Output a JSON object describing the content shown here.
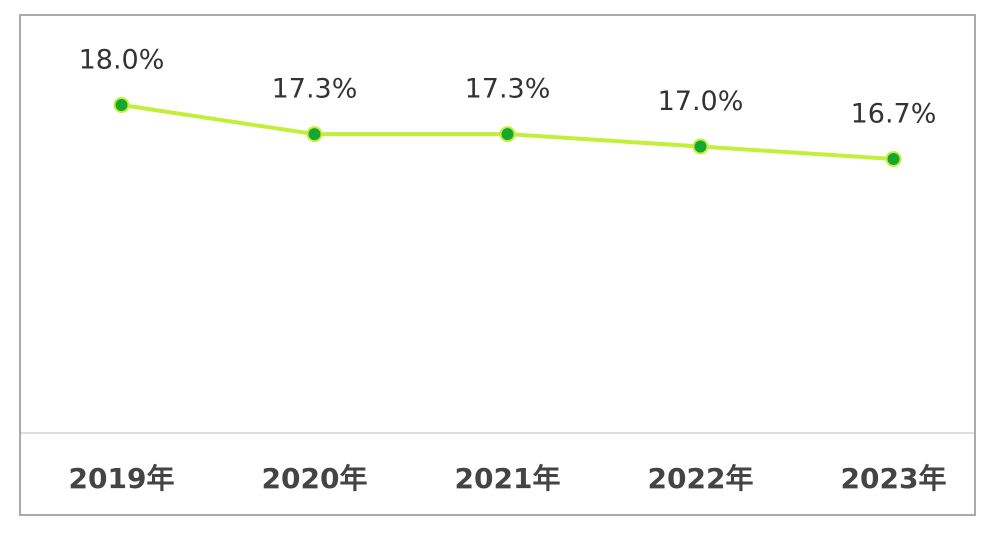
{
  "chart_data": {
    "type": "line",
    "categories": [
      "2019年",
      "2020年",
      "2021年",
      "2022年",
      "2023年"
    ],
    "series": [
      {
        "color": "#c3ef3a",
        "marker_color": "#17a62f",
        "values": [
          18.0,
          17.3,
          17.3,
          17.0,
          16.7
        ],
        "value_labels": [
          "18.0%",
          "17.3%",
          "17.3%",
          "17.0%",
          "16.7%"
        ]
      }
    ],
    "grid": false
  }
}
